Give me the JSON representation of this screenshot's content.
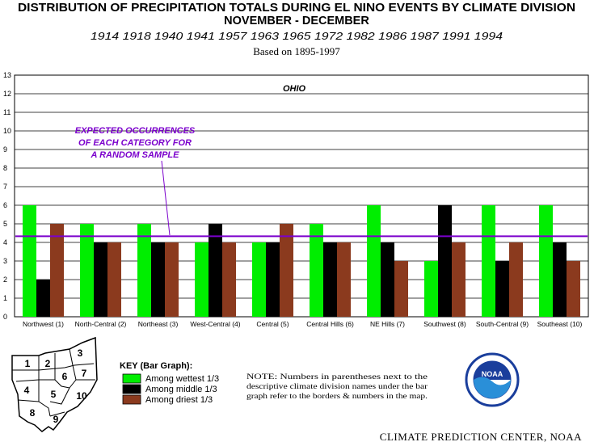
{
  "header": {
    "title_line1": "DISTRIBUTION OF PRECIPITATION TOTALS DURING EL NINO EVENTS BY CLIMATE DIVISION",
    "title_line2": "NOVEMBER - DECEMBER",
    "years": "1914  1918  1940  1941  1957  1963  1965  1972  1982  1986  1987  1991  1994",
    "base": "Based on 1895-1997"
  },
  "chart_data": {
    "type": "bar",
    "title": "OHIO",
    "categories": [
      "Northwest (1)",
      "North-Central (2)",
      "Northeast (3)",
      "West-Central (4)",
      "Central (5)",
      "Central Hills (6)",
      "NE Hills (7)",
      "Southwest (8)",
      "South-Central (9)",
      "Southeast (10)"
    ],
    "series": [
      {
        "name": "Among wettest 1/3",
        "color": "#00ee00",
        "values": [
          6,
          5,
          5,
          4,
          4,
          5,
          6,
          3,
          6,
          6
        ]
      },
      {
        "name": "Among middle 1/3",
        "color": "#000000",
        "values": [
          2,
          4,
          4,
          5,
          4,
          4,
          4,
          6,
          3,
          4
        ]
      },
      {
        "name": "Among driest 1/3",
        "color": "#8b3a1e",
        "values": [
          5,
          4,
          4,
          4,
          5,
          4,
          3,
          4,
          4,
          3
        ]
      }
    ],
    "ylim": [
      0,
      13
    ],
    "yticks": [
      "0",
      "1",
      "2",
      "3",
      "4",
      "5",
      "6",
      "7",
      "8",
      "9",
      "10",
      "11",
      "12",
      "13"
    ],
    "reference_line": {
      "value": 4.33,
      "color": "#7b00cc"
    },
    "annotation": [
      "EXPECTED OCCURRENCES",
      "OF EACH CATEGORY FOR",
      "A RANDOM SAMPLE"
    ],
    "grid": true
  },
  "key": {
    "title": "KEY (Bar Graph):",
    "items": [
      "Among wettest 1/3",
      "Among middle 1/3",
      "Among driest 1/3"
    ]
  },
  "map": {
    "labels": [
      "1",
      "2",
      "3",
      "4",
      "5",
      "6",
      "7",
      "8",
      "9",
      "10"
    ]
  },
  "note": {
    "lines": [
      "NOTE:   Numbers  in  parentheses  next  to  the",
      "descriptive  climate  division  names  under  the  bar",
      "graph refer to the borders & numbers in the map."
    ]
  },
  "logo": {
    "text": "NOAA"
  },
  "footer": "CLIMATE PREDICTION CENTER, NOAA"
}
